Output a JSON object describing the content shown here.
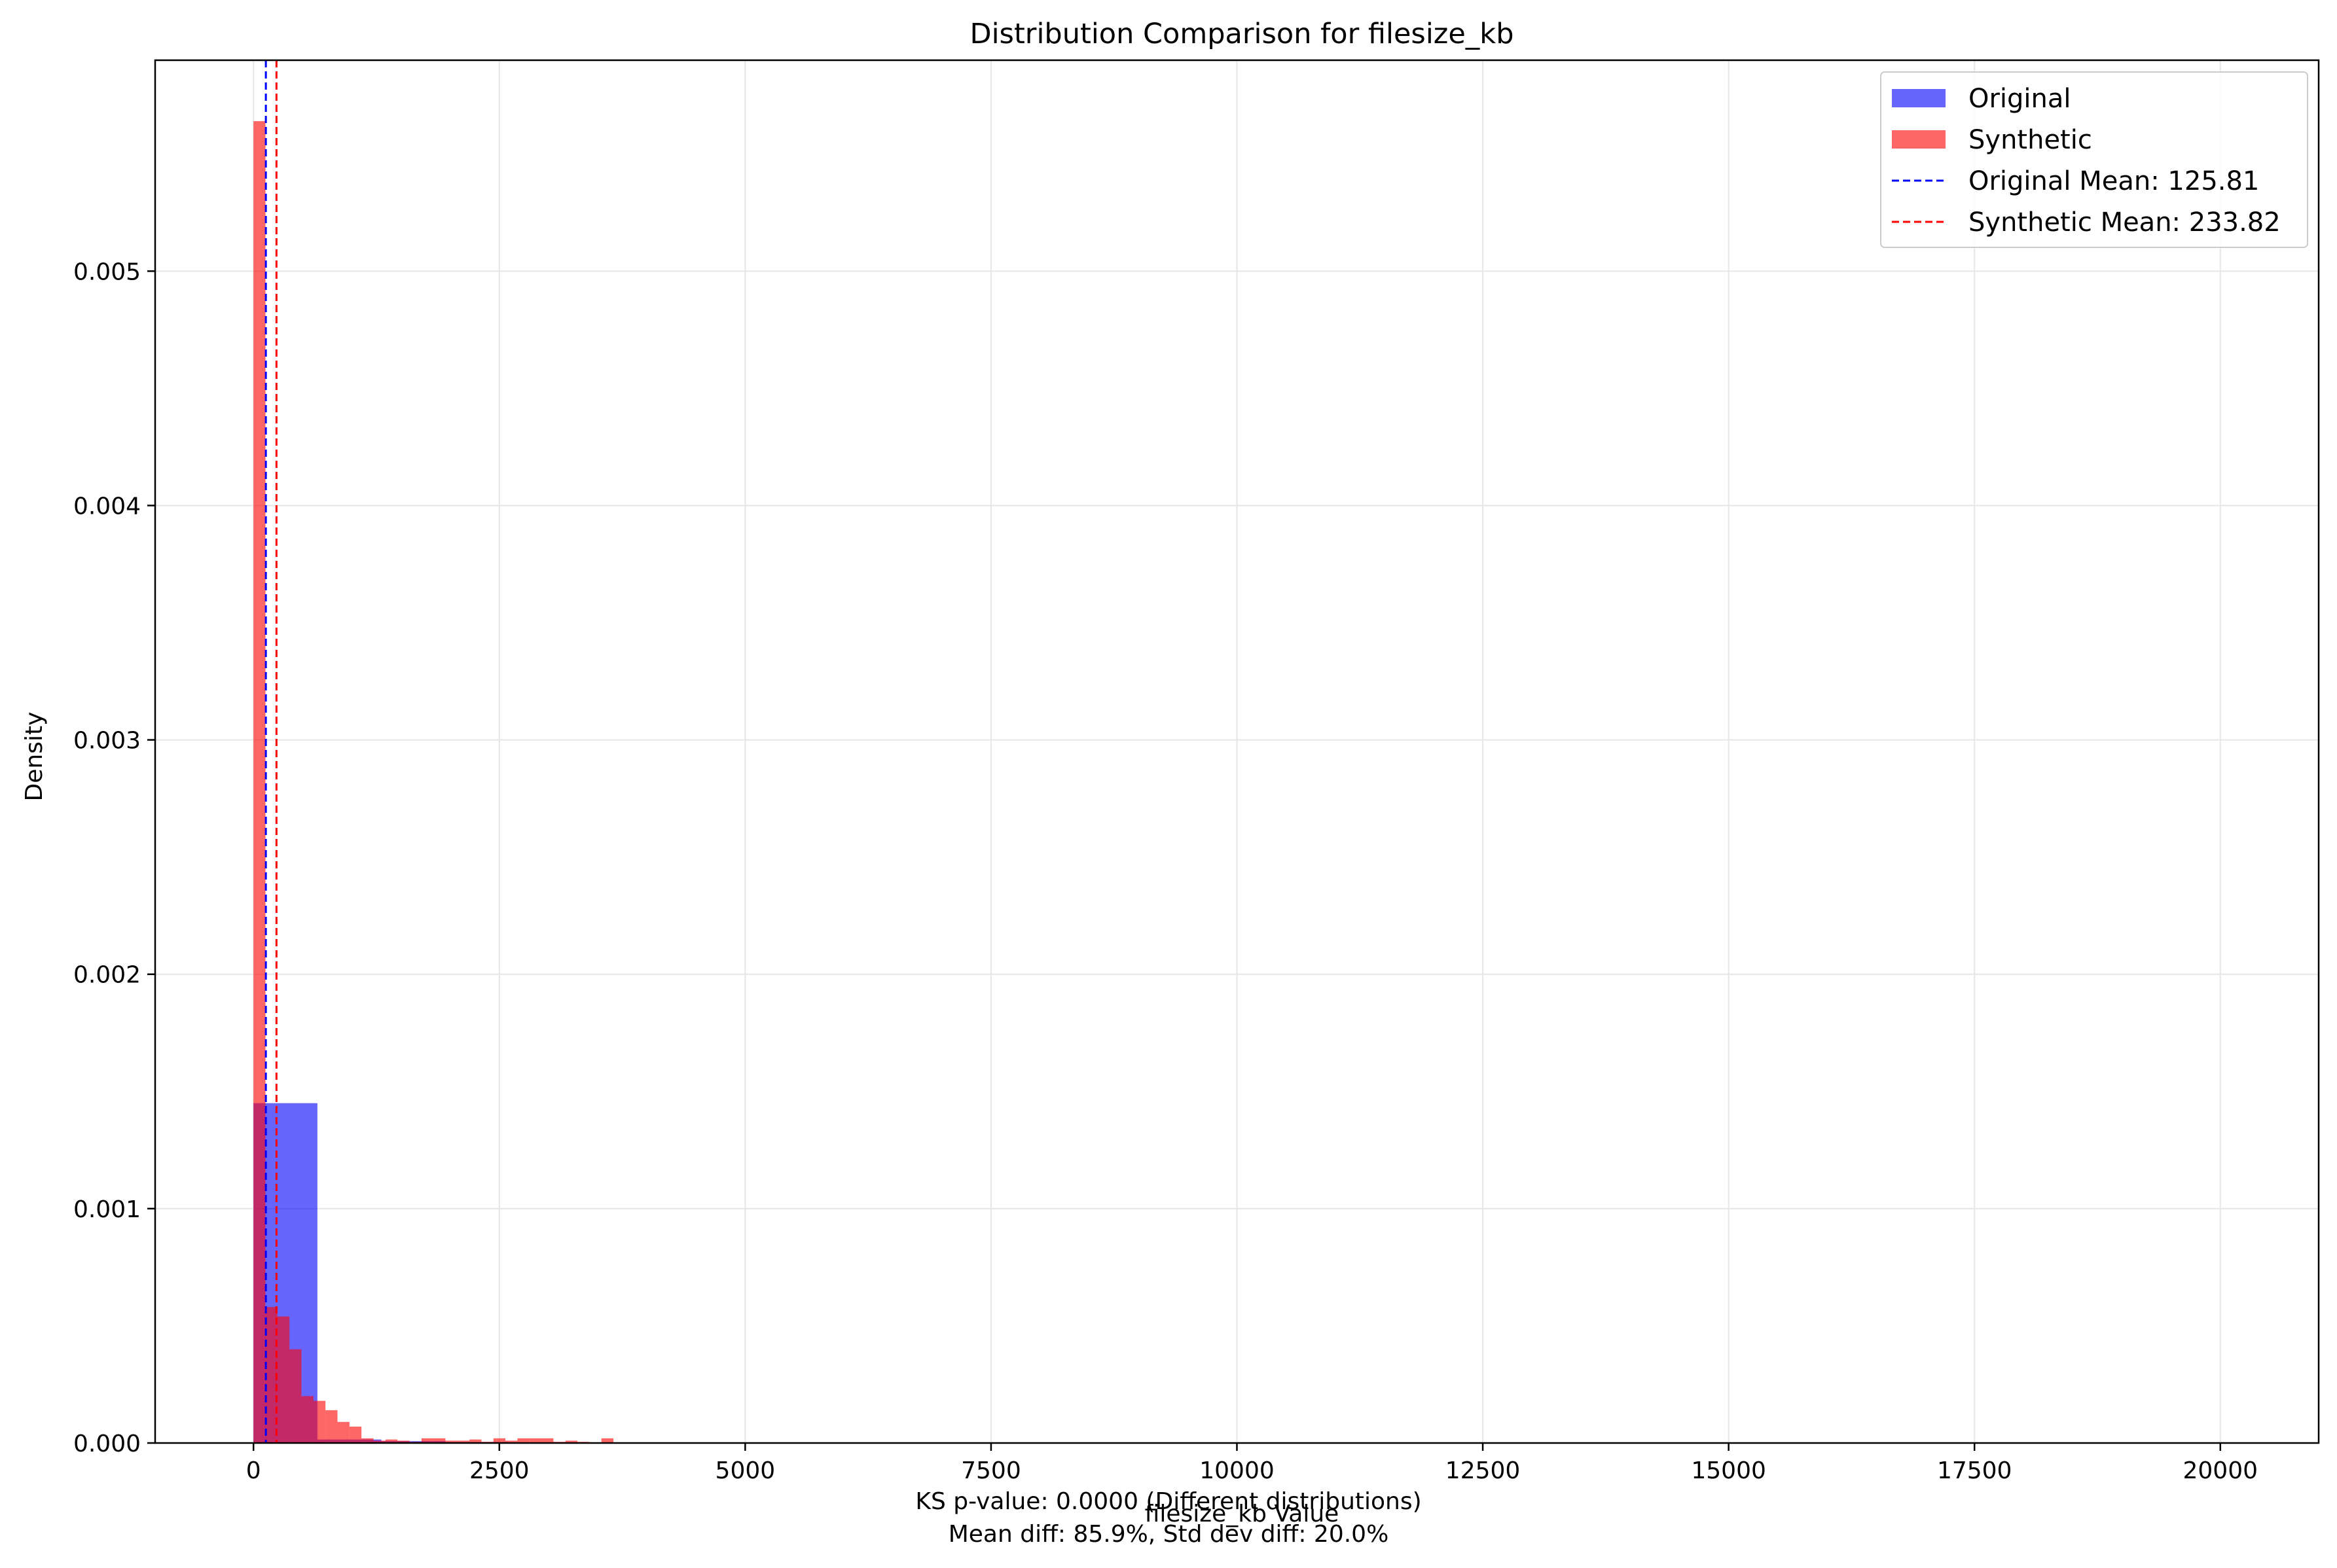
{
  "chart_data": {
    "type": "bar",
    "title": "Distribution Comparison for filesize_kb",
    "xlabel": "filesize_kb Value",
    "ylabel": "Density",
    "xlim": [
      -1000,
      21000
    ],
    "ylim": [
      0,
      0.0059
    ],
    "grid": true,
    "legend_position": "top-right",
    "x_ticks": [
      0,
      2500,
      5000,
      7500,
      10000,
      12500,
      15000,
      17500,
      20000
    ],
    "x_tick_labels": [
      "0",
      "2500",
      "5000",
      "7500",
      "10000",
      "12500",
      "15000",
      "17500",
      "20000"
    ],
    "y_ticks": [
      0.0,
      0.001,
      0.002,
      0.003,
      0.004,
      0.005
    ],
    "y_tick_labels": [
      "0.000",
      "0.001",
      "0.002",
      "0.003",
      "0.004",
      "0.005"
    ],
    "series": [
      {
        "name": "Original",
        "color": "#0000ff",
        "opacity": 0.6,
        "bins": [
          {
            "x0": 0,
            "x1": 650,
            "density": 0.00145
          },
          {
            "x0": 650,
            "x1": 1300,
            "density": 1.5e-05
          },
          {
            "x0": 1300,
            "x1": 1950,
            "density": 8e-06
          },
          {
            "x0": 1950,
            "x1": 2600,
            "density": 4e-06
          },
          {
            "x0": 2600,
            "x1": 3250,
            "density": 2e-06
          }
        ]
      },
      {
        "name": "Synthetic",
        "color": "#ff0000",
        "opacity": 0.6,
        "bins": [
          {
            "x0": 0,
            "x1": 122,
            "density": 0.00564
          },
          {
            "x0": 122,
            "x1": 244,
            "density": 0.00058
          },
          {
            "x0": 244,
            "x1": 366,
            "density": 0.00054
          },
          {
            "x0": 366,
            "x1": 488,
            "density": 0.0004
          },
          {
            "x0": 488,
            "x1": 610,
            "density": 0.0002
          },
          {
            "x0": 610,
            "x1": 732,
            "density": 0.00018
          },
          {
            "x0": 732,
            "x1": 854,
            "density": 0.00014
          },
          {
            "x0": 854,
            "x1": 976,
            "density": 9e-05
          },
          {
            "x0": 976,
            "x1": 1098,
            "density": 7e-05
          },
          {
            "x0": 1098,
            "x1": 1220,
            "density": 2e-05
          },
          {
            "x0": 1220,
            "x1": 1342,
            "density": 1e-05
          },
          {
            "x0": 1342,
            "x1": 1464,
            "density": 1.5e-05
          },
          {
            "x0": 1464,
            "x1": 1586,
            "density": 1e-05
          },
          {
            "x0": 1586,
            "x1": 1708,
            "density": 5e-06
          },
          {
            "x0": 1708,
            "x1": 1830,
            "density": 2e-05
          },
          {
            "x0": 1830,
            "x1": 1952,
            "density": 2e-05
          },
          {
            "x0": 1952,
            "x1": 2074,
            "density": 1e-05
          },
          {
            "x0": 2074,
            "x1": 2196,
            "density": 1e-05
          },
          {
            "x0": 2196,
            "x1": 2318,
            "density": 1.5e-05
          },
          {
            "x0": 2318,
            "x1": 2440,
            "density": 5e-06
          },
          {
            "x0": 2440,
            "x1": 2562,
            "density": 2e-05
          },
          {
            "x0": 2562,
            "x1": 2684,
            "density": 1e-05
          },
          {
            "x0": 2684,
            "x1": 2806,
            "density": 2e-05
          },
          {
            "x0": 2806,
            "x1": 2928,
            "density": 2e-05
          },
          {
            "x0": 2928,
            "x1": 3050,
            "density": 2e-05
          },
          {
            "x0": 3050,
            "x1": 3172,
            "density": 5e-06
          },
          {
            "x0": 3172,
            "x1": 3294,
            "density": 1e-05
          },
          {
            "x0": 3294,
            "x1": 3416,
            "density": 5e-06
          },
          {
            "x0": 3416,
            "x1": 3538,
            "density": 0.0
          },
          {
            "x0": 3538,
            "x1": 3660,
            "density": 2e-05
          }
        ]
      }
    ],
    "reference_lines": [
      {
        "name": "Original Mean: 125.81",
        "x": 125.81,
        "color": "#0000ff",
        "style": "dashed"
      },
      {
        "name": "Synthetic Mean: 233.82",
        "x": 233.82,
        "color": "#ff0000",
        "style": "dashed"
      }
    ],
    "legend": [
      {
        "label": "Original",
        "kind": "patch",
        "color": "#0000ff"
      },
      {
        "label": "Synthetic",
        "kind": "patch",
        "color": "#ff0000"
      },
      {
        "label": "Original Mean: 125.81",
        "kind": "line",
        "color": "#0000ff"
      },
      {
        "label": "Synthetic Mean: 233.82",
        "kind": "line",
        "color": "#ff0000"
      }
    ],
    "footer": [
      "KS p-value: 0.0000 (Different distributions)",
      "Mean diff: 85.9%, Std dev diff: 20.0%"
    ]
  }
}
